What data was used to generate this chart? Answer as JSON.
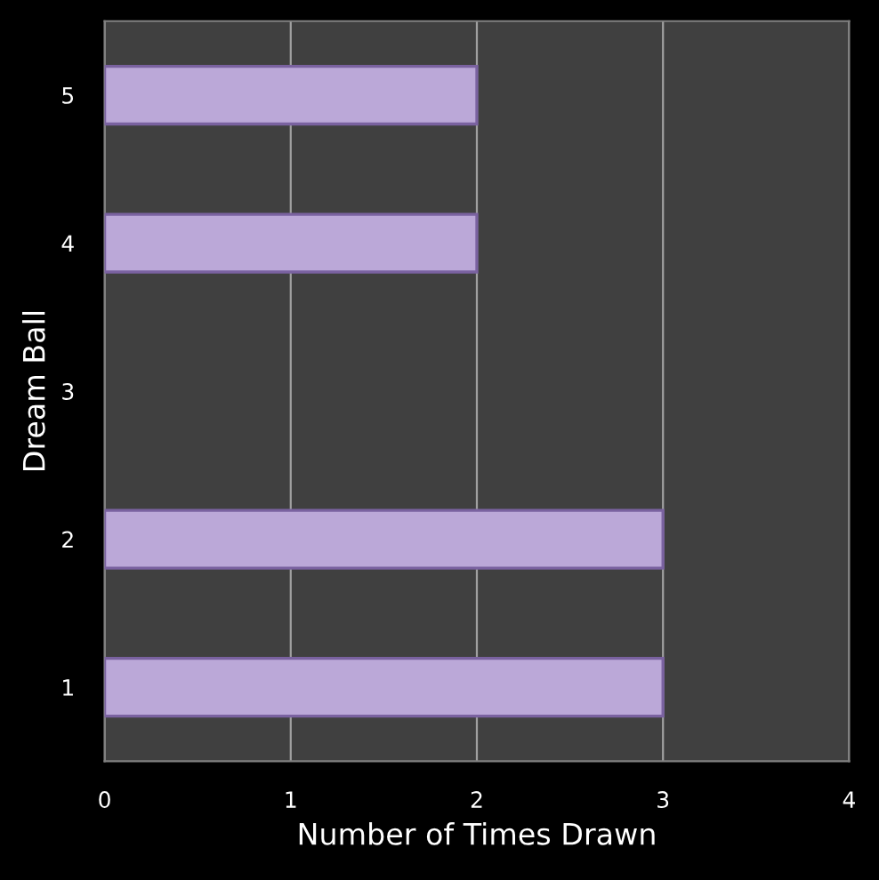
{
  "chart_data": {
    "type": "bar",
    "orientation": "horizontal",
    "categories": [
      "5",
      "4",
      "3",
      "2",
      "1"
    ],
    "values": [
      2,
      2,
      null,
      3,
      3
    ],
    "color": "#bba8d8",
    "xlabel": "Number of Times Drawn",
    "ylabel": "Dream Ball",
    "xlim": [
      0,
      4
    ],
    "xticks": [
      0,
      1,
      2,
      3,
      4
    ],
    "grid": "x"
  }
}
